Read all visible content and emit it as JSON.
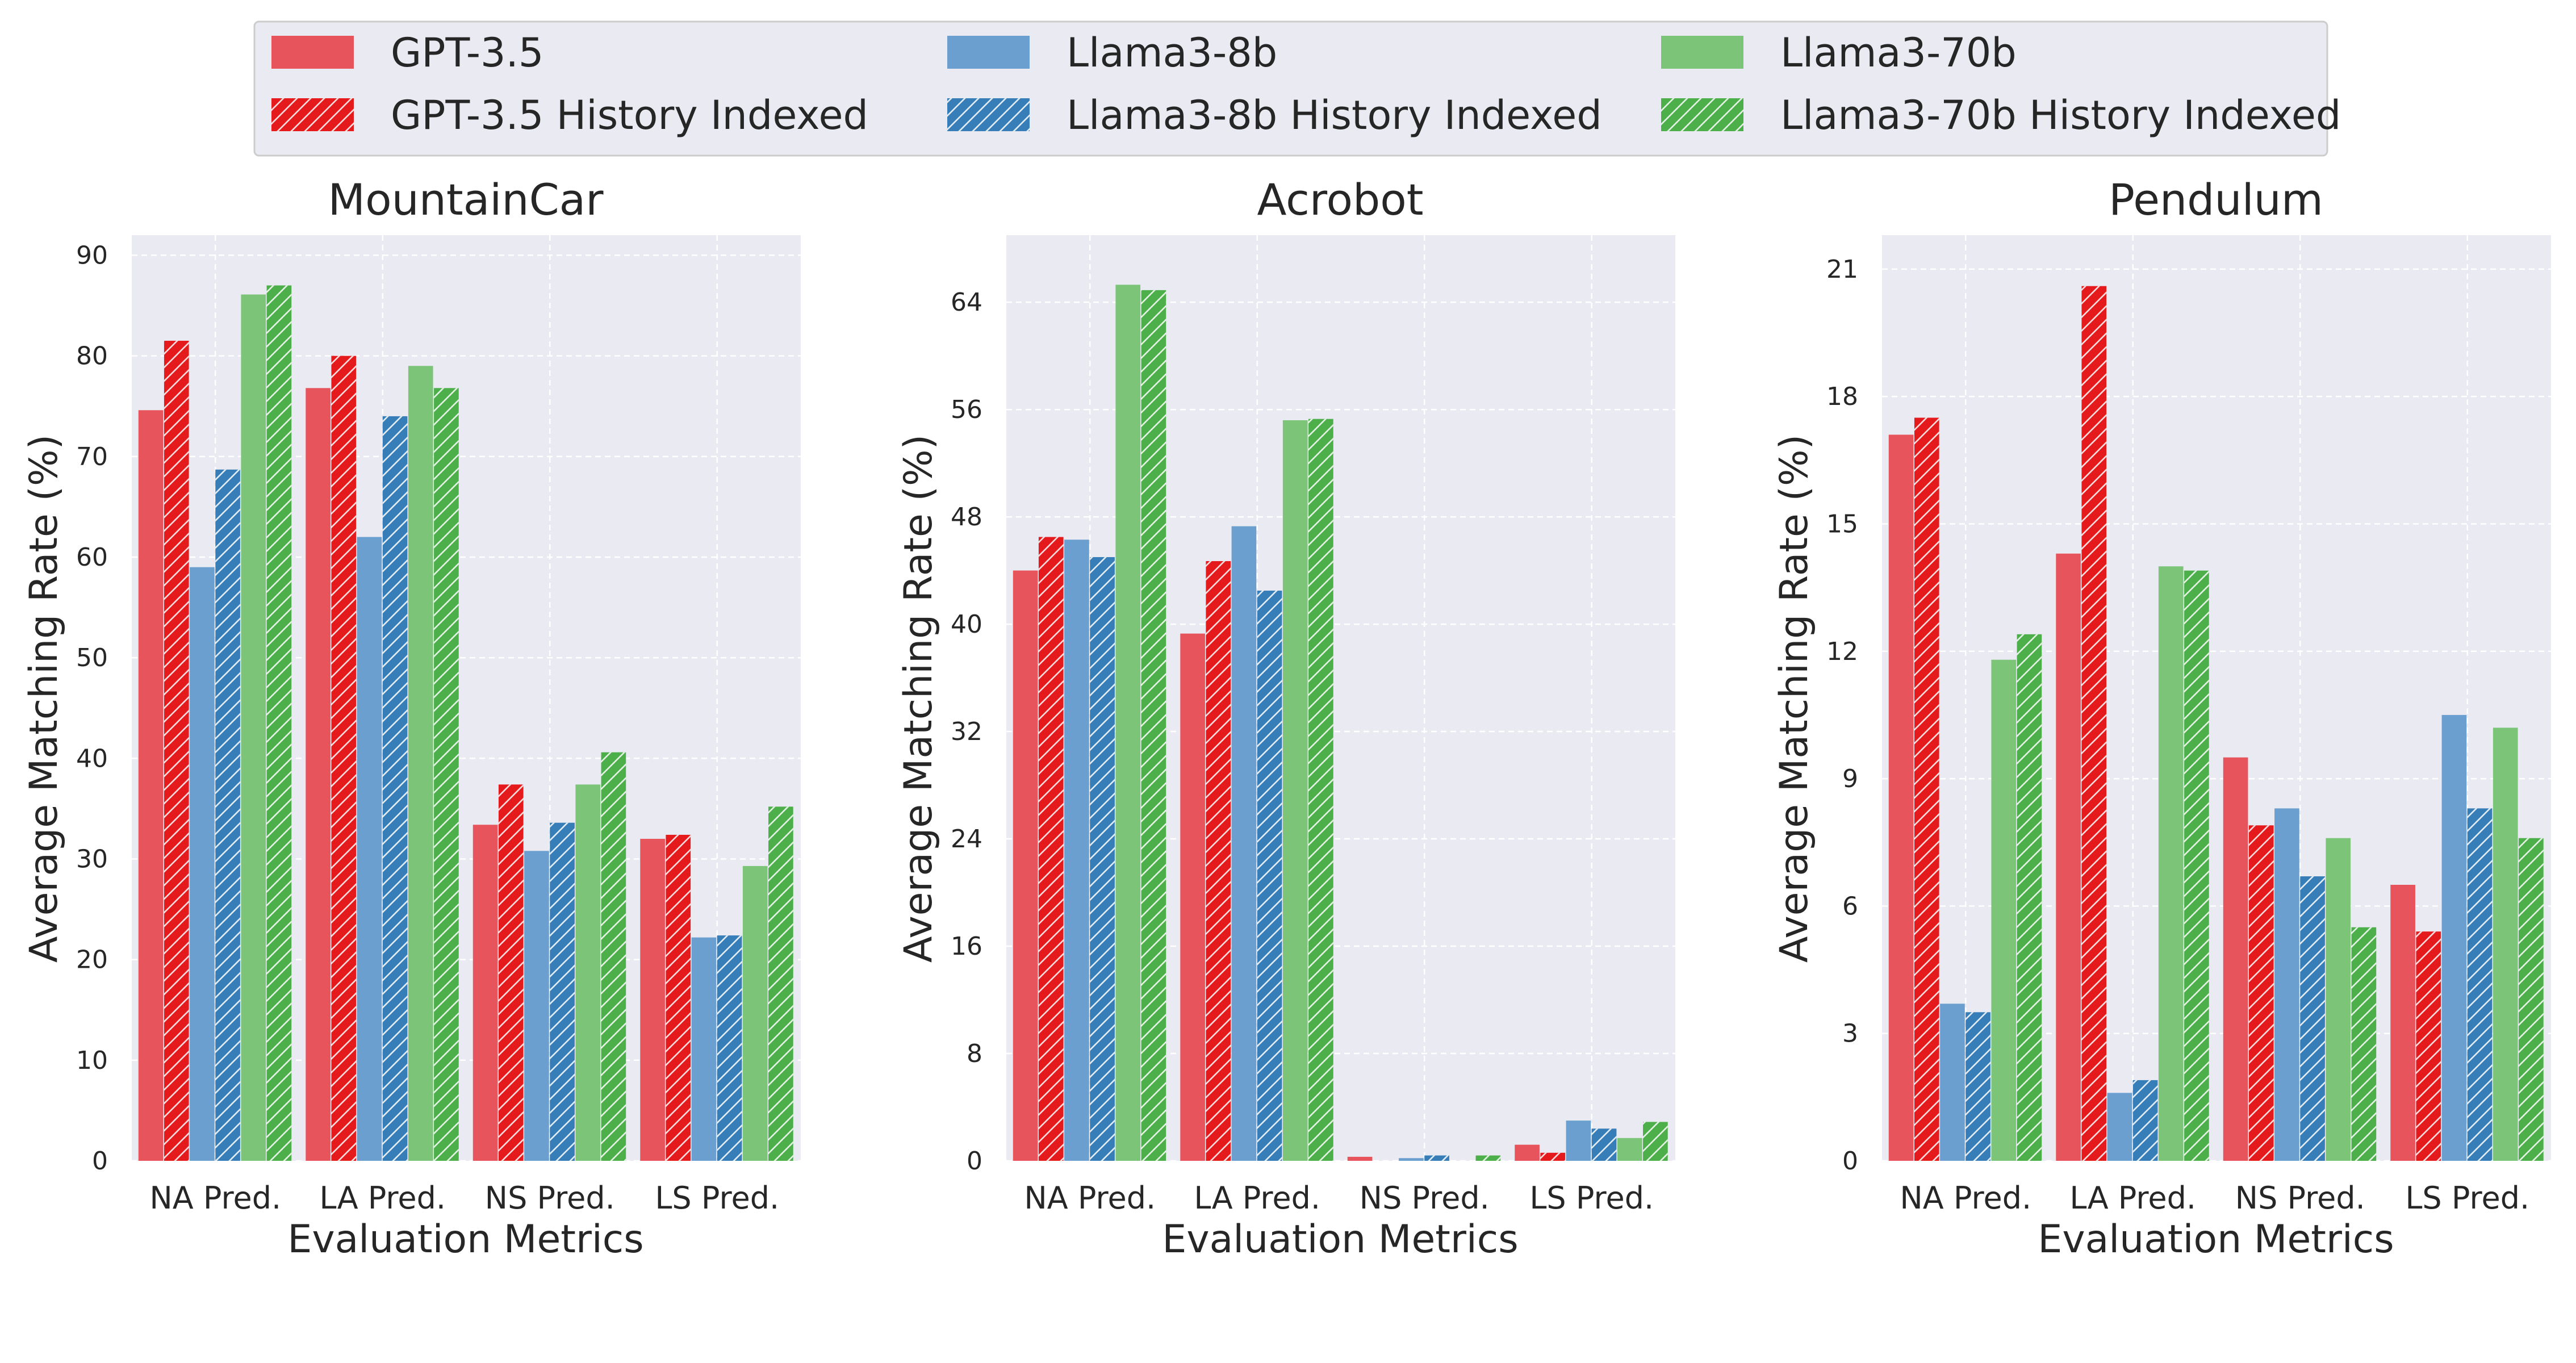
{
  "figure": {
    "legend": [
      {
        "name": "GPT-3.5",
        "color": "#E8545C",
        "hatch": false
      },
      {
        "name": "GPT-3.5 History Indexed",
        "color": "#E41A1C",
        "hatch": true
      },
      {
        "name": "Llama3-8b",
        "color": "#6A9FCF",
        "hatch": false
      },
      {
        "name": "Llama3-8b History Indexed",
        "color": "#377EB8",
        "hatch": true
      },
      {
        "name": "Llama3-70b",
        "color": "#7BC478",
        "hatch": false
      },
      {
        "name": "Llama3-70b History Indexed",
        "color": "#4DAF4A",
        "hatch": true
      }
    ]
  },
  "chart_data": [
    {
      "type": "bar",
      "title": "MountainCar",
      "xlabel": "Evaluation Metrics",
      "ylabel": "Average Matching Rate (%)",
      "categories": [
        "NA Pred.",
        "LA Pred.",
        "NS Pred.",
        "LS Pred."
      ],
      "ylim": [
        0,
        92
      ],
      "yticks": [
        0,
        10,
        20,
        30,
        40,
        50,
        60,
        70,
        80,
        90
      ],
      "series": [
        {
          "name": "GPT-3.5",
          "values": [
            74.6,
            76.8,
            33.4,
            32.0
          ]
        },
        {
          "name": "GPT-3.5 History Indexed",
          "values": [
            81.5,
            80.0,
            37.4,
            32.4
          ]
        },
        {
          "name": "Llama3-8b",
          "values": [
            59.0,
            62.0,
            30.8,
            22.2
          ]
        },
        {
          "name": "Llama3-8b History Indexed",
          "values": [
            68.7,
            74.0,
            33.6,
            22.4
          ]
        },
        {
          "name": "Llama3-70b",
          "values": [
            86.1,
            79.0,
            37.4,
            29.3
          ]
        },
        {
          "name": "Llama3-70b History Indexed",
          "values": [
            87.0,
            76.8,
            40.6,
            35.2
          ]
        }
      ]
    },
    {
      "type": "bar",
      "title": "Acrobot",
      "xlabel": "Evaluation Metrics",
      "ylabel": "Average Matching Rate (%)",
      "categories": [
        "NA Pred.",
        "LA Pred.",
        "NS Pred.",
        "LS Pred."
      ],
      "ylim": [
        0,
        69
      ],
      "yticks": [
        0,
        8,
        16,
        24,
        32,
        40,
        48,
        56,
        64
      ],
      "series": [
        {
          "name": "GPT-3.5",
          "values": [
            44.0,
            39.3,
            0.3,
            1.2
          ]
        },
        {
          "name": "GPT-3.5 History Indexed",
          "values": [
            46.5,
            44.7,
            0.0,
            0.6
          ]
        },
        {
          "name": "Llama3-8b",
          "values": [
            46.3,
            47.3,
            0.2,
            3.0
          ]
        },
        {
          "name": "Llama3-8b History Indexed",
          "values": [
            45.0,
            42.5,
            0.4,
            2.4
          ]
        },
        {
          "name": "Llama3-70b",
          "values": [
            65.3,
            55.2,
            0.0,
            1.7
          ]
        },
        {
          "name": "Llama3-70b History Indexed",
          "values": [
            64.9,
            55.3,
            0.4,
            2.9
          ]
        }
      ]
    },
    {
      "type": "bar",
      "title": "Pendulum",
      "xlabel": "Evaluation Metrics",
      "ylabel": "Average Matching Rate (%)",
      "categories": [
        "NA Pred.",
        "LA Pred.",
        "NS Pred.",
        "LS Pred."
      ],
      "ylim": [
        0,
        21.8
      ],
      "yticks": [
        0,
        3,
        6,
        9,
        12,
        15,
        18,
        21
      ],
      "series": [
        {
          "name": "GPT-3.5",
          "values": [
            17.1,
            14.3,
            9.5,
            6.5
          ]
        },
        {
          "name": "GPT-3.5 History Indexed",
          "values": [
            17.5,
            20.6,
            7.9,
            5.4
          ]
        },
        {
          "name": "Llama3-8b",
          "values": [
            3.7,
            1.6,
            8.3,
            10.5
          ]
        },
        {
          "name": "Llama3-8b History Indexed",
          "values": [
            3.5,
            1.9,
            6.7,
            8.3
          ]
        },
        {
          "name": "Llama3-70b",
          "values": [
            11.8,
            14.0,
            7.6,
            10.2
          ]
        },
        {
          "name": "Llama3-70b History Indexed",
          "values": [
            12.4,
            13.9,
            5.5,
            7.6
          ]
        }
      ]
    }
  ]
}
